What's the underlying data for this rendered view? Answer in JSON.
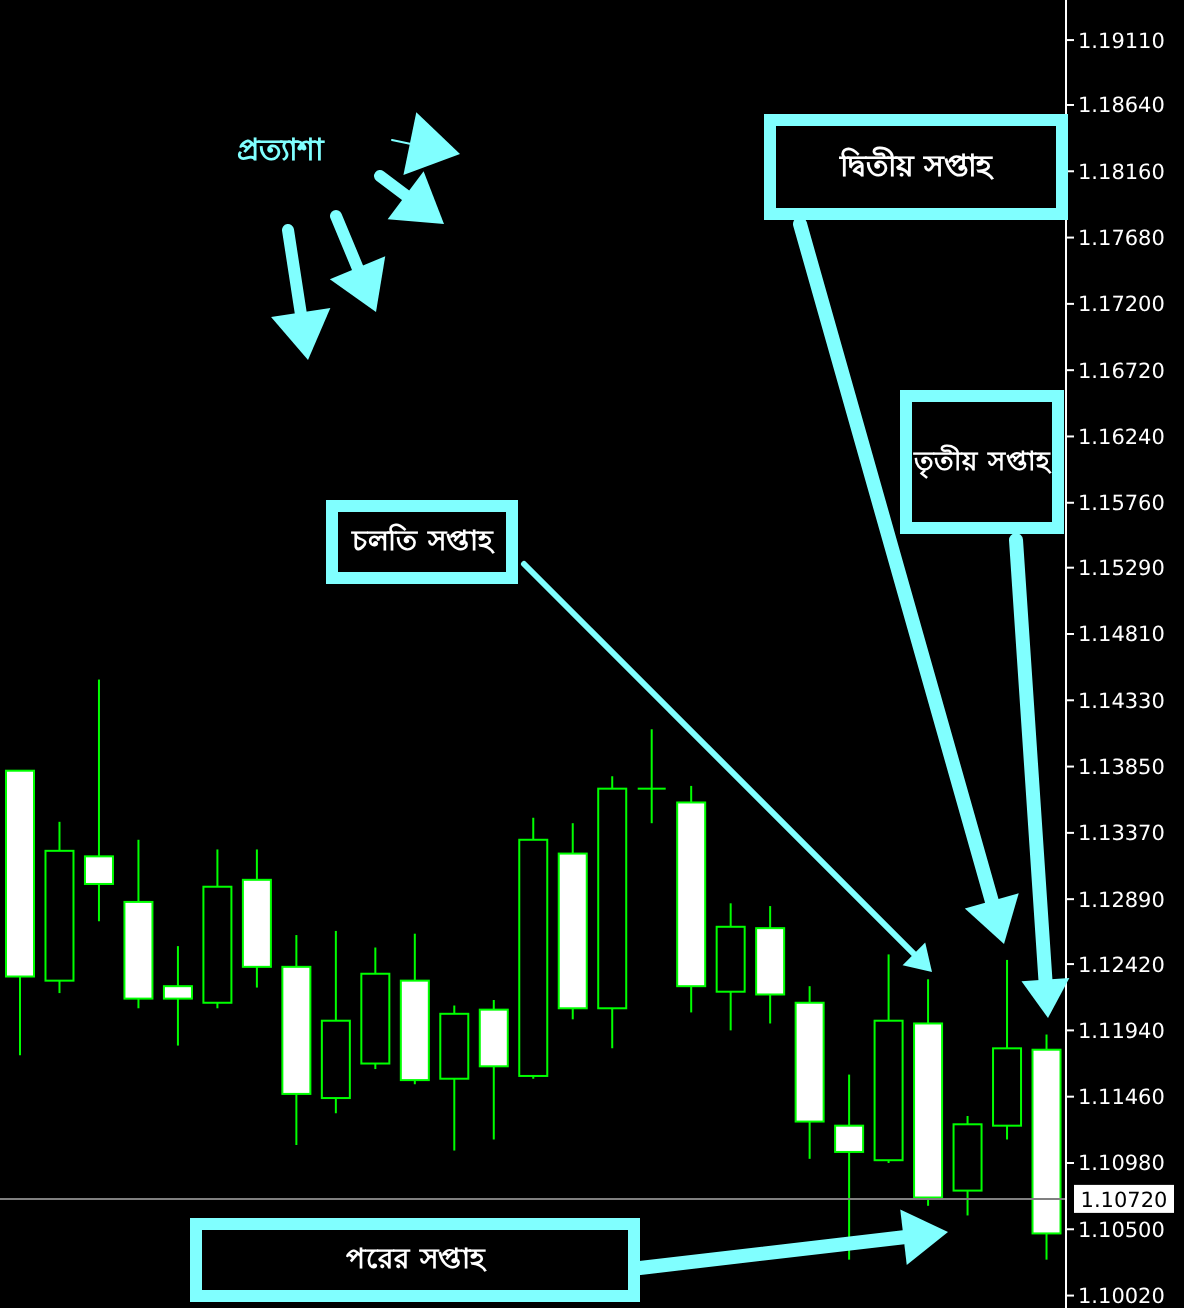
{
  "chart_data": {
    "type": "candlestick",
    "annotations": [
      "প্রত্যাশা",
      "চলতি সপ্তাহ",
      "দ্বিতীয় সপ্তাহ",
      "তৃতীয় সপ্তাহ",
      "পরের সপ্তাহ"
    ],
    "categories": [
      null,
      null,
      null,
      null,
      null,
      null,
      null,
      null,
      null,
      null,
      null,
      null,
      null,
      null,
      null,
      null,
      null,
      null,
      null,
      null,
      null,
      null,
      null,
      null,
      null,
      null,
      null
    ],
    "ohlc": [
      [
        1.1382,
        1.1382,
        1.1176,
        1.1233
      ],
      [
        1.123,
        1.1345,
        1.1221,
        1.1324
      ],
      [
        1.132,
        1.1448,
        1.1273,
        1.13
      ],
      [
        1.1287,
        1.1332,
        1.121,
        1.1217
      ],
      [
        1.1226,
        1.1255,
        1.1183,
        1.1217
      ],
      [
        1.1214,
        1.1325,
        1.121,
        1.1298
      ],
      [
        1.1303,
        1.1325,
        1.1225,
        1.124
      ],
      [
        1.124,
        1.1263,
        1.1111,
        1.1148
      ],
      [
        1.1145,
        1.1266,
        1.1134,
        1.1201
      ],
      [
        1.117,
        1.1254,
        1.1166,
        1.1235
      ],
      [
        1.123,
        1.1264,
        1.1155,
        1.1158
      ],
      [
        1.1159,
        1.1212,
        1.1107,
        1.1206
      ],
      [
        1.1209,
        1.1216,
        1.1115,
        1.1168
      ],
      [
        1.1161,
        1.1348,
        1.1159,
        1.1332
      ],
      [
        1.1322,
        1.1344,
        1.1202,
        1.121
      ],
      [
        1.121,
        1.1378,
        1.1181,
        1.1369
      ],
      [
        1.1369,
        1.1412,
        1.1344,
        1.1369
      ],
      [
        1.1359,
        1.1371,
        1.1207,
        1.1226
      ],
      [
        1.1222,
        1.1286,
        1.1194,
        1.1269
      ],
      [
        1.1268,
        1.1284,
        1.1199,
        1.122
      ],
      [
        1.1214,
        1.1226,
        1.1101,
        1.1128
      ],
      [
        1.1125,
        1.1162,
        1.1028,
        1.1106
      ],
      [
        1.11,
        1.1249,
        1.1098,
        1.1201
      ],
      [
        1.1199,
        1.1231,
        1.1067,
        1.1073
      ],
      [
        1.1078,
        1.1132,
        1.106,
        1.1126
      ],
      [
        1.1125,
        1.1245,
        1.1115,
        1.1181
      ],
      [
        1.118,
        1.1191,
        1.1028,
        1.1047
      ]
    ],
    "ylim": [
      1.0993,
      1.194
    ],
    "yticks": [
      {
        "value": 1.1911,
        "label": "1.19110"
      },
      {
        "value": 1.1864,
        "label": "1.18640"
      },
      {
        "value": 1.1816,
        "label": "1.18160"
      },
      {
        "value": 1.1768,
        "label": "1.17680"
      },
      {
        "value": 1.172,
        "label": "1.17200"
      },
      {
        "value": 1.1672,
        "label": "1.16720"
      },
      {
        "value": 1.1624,
        "label": "1.16240"
      },
      {
        "value": 1.1576,
        "label": "1.15760"
      },
      {
        "value": 1.1529,
        "label": "1.15290"
      },
      {
        "value": 1.1481,
        "label": "1.14810"
      },
      {
        "value": 1.1433,
        "label": "1.14330"
      },
      {
        "value": 1.1385,
        "label": "1.13850"
      },
      {
        "value": 1.1337,
        "label": "1.13370"
      },
      {
        "value": 1.1289,
        "label": "1.12890"
      },
      {
        "value": 1.1242,
        "label": "1.12420"
      },
      {
        "value": 1.1194,
        "label": "1.11940"
      },
      {
        "value": 1.1146,
        "label": "1.11460"
      },
      {
        "value": 1.1098,
        "label": "1.10980"
      },
      {
        "value": 1.105,
        "label": "1.10500"
      },
      {
        "value": 1.1002,
        "label": "1.10020"
      }
    ],
    "ref_lines": [
      {
        "axis": "y",
        "value": 1.1072,
        "label": "1.10720",
        "color": "#808080"
      }
    ],
    "tick_labels": "y"
  }
}
